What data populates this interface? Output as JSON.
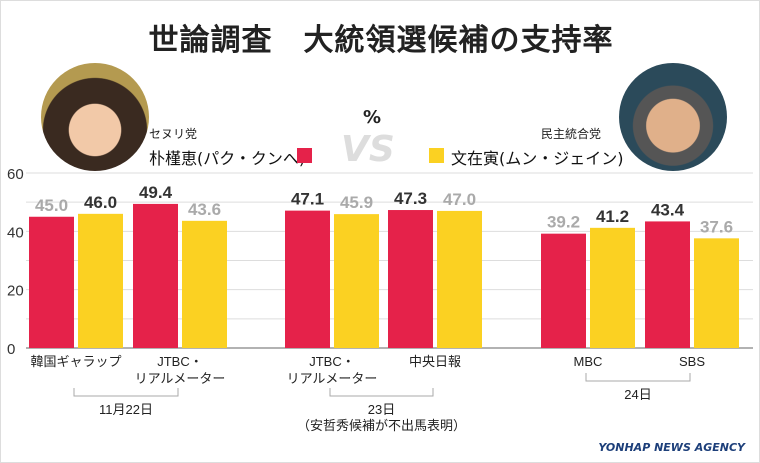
{
  "title": "世論調査　大統領選候補の支持率",
  "unit": "%",
  "vs": "VS",
  "candidates": [
    {
      "party": "セヌリ党",
      "name": "朴槿恵(パク・クンへ)",
      "color": "#e5224a"
    },
    {
      "party": "民主統合党",
      "name": "文在寅(ムン・ジェイン)",
      "color": "#fbd122"
    }
  ],
  "logo": "YONHAP NEWS AGENCY",
  "chart_data": {
    "type": "bar",
    "ylim": [
      0,
      60
    ],
    "yticks": [
      0,
      20,
      40,
      60
    ],
    "grid": true,
    "categories": [
      "韓国ギャラップ",
      "JTBC・\nリアルメーター",
      "JTBC・\nリアルメーター",
      "中央日報",
      "MBC",
      "SBS"
    ],
    "series": [
      {
        "name": "朴槿恵(パク・クンへ)",
        "values": [
          45.0,
          49.4,
          47.1,
          47.3,
          39.2,
          43.4
        ]
      },
      {
        "name": "文在寅(ムン・ジェイン)",
        "values": [
          46.0,
          43.6,
          45.9,
          47.0,
          41.2,
          37.6
        ]
      }
    ],
    "groups": [
      {
        "label": "11月22日",
        "categories": [
          0,
          1
        ]
      },
      {
        "label": "23日",
        "note": "（安哲秀候補が不出馬表明）",
        "categories": [
          2,
          3
        ]
      },
      {
        "label": "24日",
        "categories": [
          4,
          5
        ]
      }
    ]
  }
}
